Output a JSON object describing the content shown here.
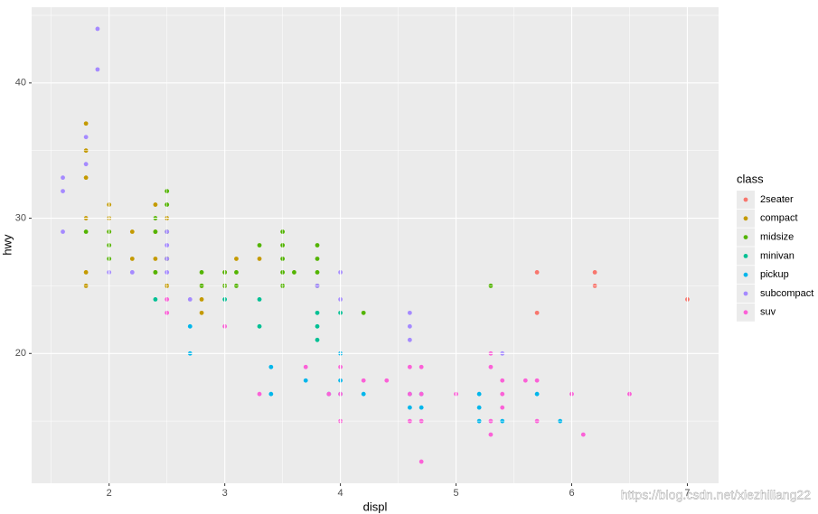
{
  "chart_data": {
    "type": "scatter",
    "x_label": "displ",
    "y_label": "hwy",
    "legend_title": "class",
    "legend_position": "right",
    "grid": true,
    "watermark": "https://blog.csdn.net/xiezhiliang22",
    "xlim": [
      1.33,
      7.27
    ],
    "ylim": [
      10.4,
      45.6
    ],
    "xticks": [
      2,
      3,
      4,
      5,
      6,
      7
    ],
    "yticks": [
      20,
      30,
      40
    ],
    "minor_xticks": [
      1.5,
      2.5,
      3.5,
      4.5,
      5.5,
      6.5
    ],
    "minor_yticks": [
      15,
      25,
      35,
      45
    ],
    "series": [
      {
        "name": "2seater",
        "color": "#F8766D",
        "x": [
          5.7,
          5.7,
          6.2,
          6.2,
          7.0
        ],
        "values": [
          26,
          23,
          26,
          25,
          24
        ]
      },
      {
        "name": "compact",
        "color": "#C49A00",
        "x": [
          1.8,
          1.8,
          1.8,
          1.8,
          1.8,
          1.8,
          2.0,
          2.0,
          2.0,
          2.2,
          2.2,
          2.4,
          2.4,
          2.4,
          2.4,
          2.5,
          2.5,
          2.5,
          2.8,
          2.8,
          2.8,
          3.0,
          3.0,
          3.1,
          3.3
        ],
        "values": [
          37,
          35,
          33,
          30,
          26,
          25,
          31,
          30,
          29,
          29,
          27,
          31,
          29,
          27,
          26,
          30,
          27,
          25,
          25,
          24,
          23,
          26,
          25,
          27,
          27
        ]
      },
      {
        "name": "midsize",
        "color": "#53B400",
        "x": [
          1.8,
          2.0,
          2.0,
          2.0,
          2.4,
          2.4,
          2.4,
          2.5,
          2.5,
          2.5,
          2.5,
          2.8,
          2.8,
          3.0,
          3.0,
          3.1,
          3.1,
          3.3,
          3.5,
          3.5,
          3.5,
          3.5,
          3.5,
          3.6,
          3.8,
          3.8,
          3.8,
          3.8,
          4.2,
          5.3
        ],
        "values": [
          29,
          29,
          28,
          27,
          30,
          29,
          26,
          32,
          31,
          29,
          27,
          26,
          25,
          26,
          25,
          26,
          25,
          28,
          29,
          28,
          27,
          26,
          25,
          26,
          28,
          27,
          26,
          25,
          23,
          25
        ]
      },
      {
        "name": "minivan",
        "color": "#00C094",
        "x": [
          2.4,
          3.0,
          3.3,
          3.3,
          3.8,
          3.8,
          3.8,
          4.0
        ],
        "values": [
          24,
          24,
          24,
          22,
          23,
          22,
          21,
          23
        ]
      },
      {
        "name": "pickup",
        "color": "#00B6EB",
        "x": [
          2.7,
          2.7,
          3.4,
          3.4,
          3.7,
          3.9,
          4.0,
          4.0,
          4.0,
          4.2,
          4.6,
          4.6,
          4.7,
          4.7,
          5.2,
          5.2,
          5.2,
          5.4,
          5.7,
          5.9
        ],
        "values": [
          22,
          20,
          19,
          17,
          18,
          17,
          20,
          18,
          17,
          17,
          17,
          16,
          17,
          16,
          17,
          16,
          15,
          15,
          17,
          15
        ]
      },
      {
        "name": "subcompact",
        "color": "#A58AFF",
        "x": [
          1.6,
          1.6,
          1.6,
          1.8,
          1.8,
          1.9,
          1.9,
          2.0,
          2.2,
          2.5,
          2.5,
          2.5,
          2.5,
          2.7,
          3.8,
          4.0,
          4.0,
          4.6,
          4.6,
          4.6,
          5.4
        ],
        "values": [
          33,
          32,
          29,
          36,
          34,
          44,
          41,
          26,
          26,
          29,
          28,
          27,
          26,
          24,
          25,
          26,
          24,
          23,
          22,
          21,
          20
        ]
      },
      {
        "name": "suv",
        "color": "#FB61D7",
        "x": [
          2.5,
          2.5,
          3.0,
          3.3,
          3.7,
          3.9,
          4.0,
          4.0,
          4.0,
          4.2,
          4.4,
          4.6,
          4.6,
          4.6,
          4.7,
          4.7,
          4.7,
          4.7,
          5.0,
          5.3,
          5.3,
          5.3,
          5.3,
          5.4,
          5.4,
          5.4,
          5.6,
          5.7,
          5.7,
          6.0,
          6.1,
          6.5
        ],
        "values": [
          24,
          23,
          22,
          17,
          19,
          17,
          19,
          17,
          15,
          18,
          18,
          19,
          17,
          15,
          19,
          17,
          15,
          12,
          17,
          20,
          19,
          15,
          14,
          18,
          17,
          16,
          18,
          18,
          15,
          17,
          14,
          17
        ]
      }
    ]
  }
}
